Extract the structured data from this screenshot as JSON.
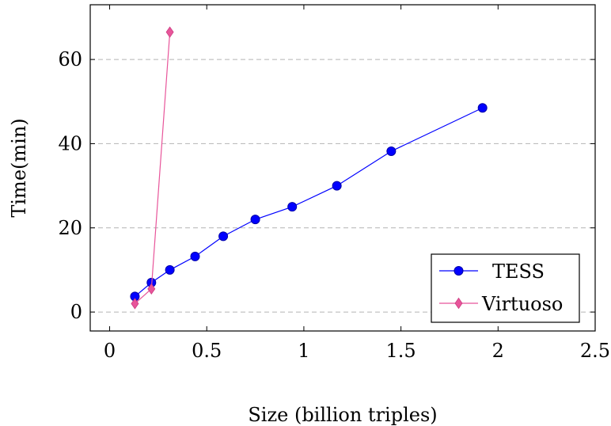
{
  "chart_data": {
    "type": "line",
    "title": "",
    "xlabel": "Size (billion triples)",
    "ylabel": "Time(min)",
    "xlim": [
      -0.1,
      2.5
    ],
    "ylim": [
      -4.5,
      73
    ],
    "xticks": [
      0,
      0.5,
      1,
      1.5,
      2,
      2.5
    ],
    "xtick_labels": [
      "0",
      "0.5",
      "1",
      "1.5",
      "2",
      "2.5"
    ],
    "yticks": [
      0,
      20,
      40,
      60
    ],
    "ytick_labels": [
      "0",
      "20",
      "40",
      "60"
    ],
    "grid": "horizontal dashed",
    "legend_position": "bottom-right",
    "series": [
      {
        "name": "TESS",
        "color": "#0000ff",
        "marker": "circle",
        "x": [
          0.13,
          0.215,
          0.31,
          0.44,
          0.585,
          0.75,
          0.94,
          1.17,
          1.45,
          1.92
        ],
        "y": [
          3.7,
          7.0,
          10.0,
          13.2,
          18.0,
          22.0,
          25.0,
          30.0,
          38.2,
          48.5
        ]
      },
      {
        "name": "Virtuoso",
        "color": "#e8559a",
        "marker": "diamond",
        "x": [
          0.13,
          0.215,
          0.31
        ],
        "y": [
          2.0,
          5.5,
          66.5
        ]
      }
    ]
  }
}
